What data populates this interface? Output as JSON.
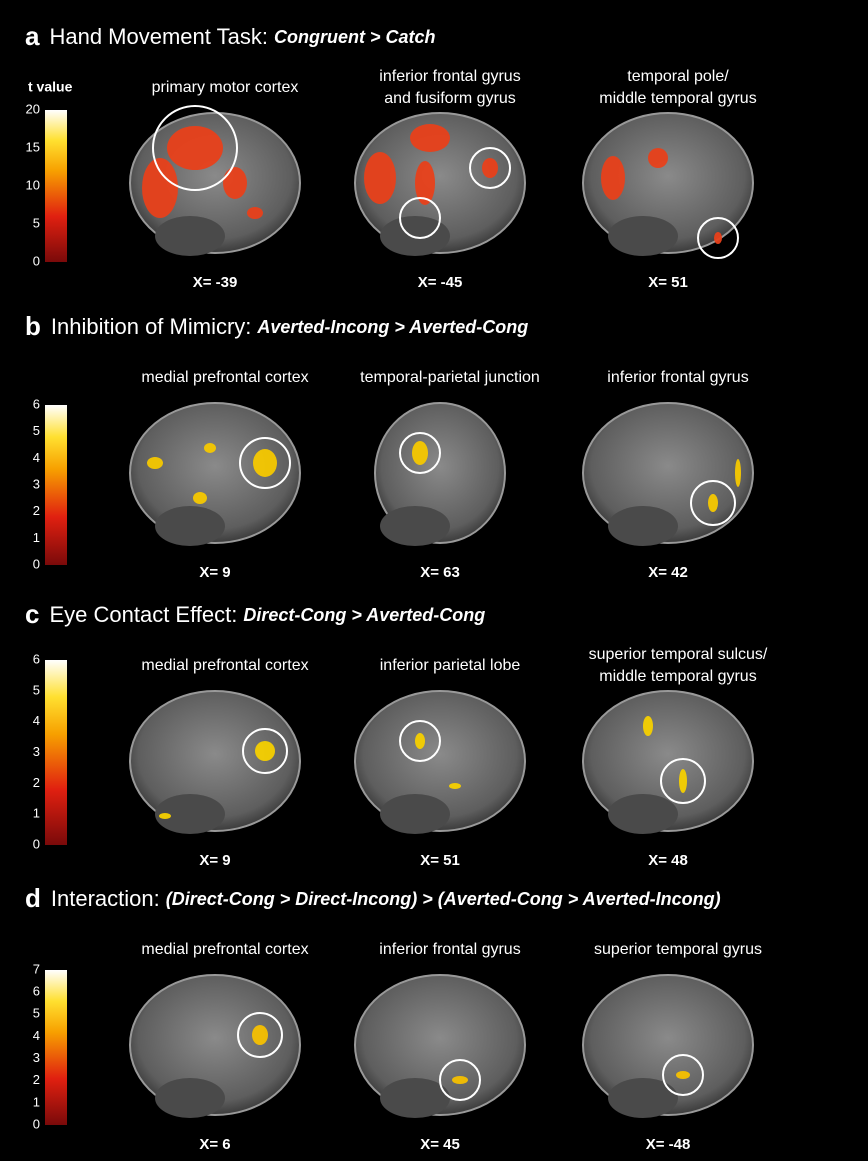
{
  "panels": [
    {
      "label": "a",
      "title": "Hand Movement Task:",
      "contrast": "Congruent > Catch",
      "colorbar": {
        "label": "t value",
        "ticks": [
          0,
          5,
          10,
          15,
          20
        ]
      },
      "slices": [
        {
          "region": [
            "primary motor cortex"
          ],
          "coordinate": "X= -39"
        },
        {
          "region": [
            "inferior frontal gyrus",
            "and fusiform gyrus"
          ],
          "coordinate": "X= -45"
        },
        {
          "region": [
            "temporal pole/",
            "middle temporal gyrus"
          ],
          "coordinate": "X= 51"
        }
      ]
    },
    {
      "label": "b",
      "title": "Inhibition of Mimicry:",
      "contrast": "Averted-Incong > Averted-Cong",
      "colorbar": {
        "ticks": [
          0,
          1,
          2,
          3,
          4,
          5,
          6
        ]
      },
      "slices": [
        {
          "region": [
            "medial prefrontal cortex"
          ],
          "coordinate": "X= 9"
        },
        {
          "region": [
            "temporal-parietal junction"
          ],
          "coordinate": "X= 63"
        },
        {
          "region": [
            "inferior frontal gyrus"
          ],
          "coordinate": "X= 42"
        }
      ]
    },
    {
      "label": "c",
      "title": "Eye Contact Effect:",
      "contrast": "Direct-Cong > Averted-Cong",
      "colorbar": {
        "ticks": [
          0,
          1,
          2,
          3,
          4,
          5,
          6
        ]
      },
      "slices": [
        {
          "region": [
            "medial prefrontal cortex"
          ],
          "coordinate": "X= 9"
        },
        {
          "region": [
            "inferior parietal lobe"
          ],
          "coordinate": "X= 51"
        },
        {
          "region": [
            "superior temporal sulcus/",
            "middle temporal gyrus"
          ],
          "coordinate": "X= 48"
        }
      ]
    },
    {
      "label": "d",
      "title": "Interaction:",
      "contrast": "(Direct-Cong > Direct-Incong) > (Averted-Cong > Averted-Incong)",
      "colorbar": {
        "ticks": [
          0,
          1,
          2,
          3,
          4,
          5,
          6,
          7
        ]
      },
      "slices": [
        {
          "region": [
            "medial prefrontal cortex"
          ],
          "coordinate": "X= 6"
        },
        {
          "region": [
            "inferior frontal gyrus"
          ],
          "coordinate": "X= 45"
        },
        {
          "region": [
            "superior temporal gyrus"
          ],
          "coordinate": "X= -48"
        }
      ]
    }
  ]
}
